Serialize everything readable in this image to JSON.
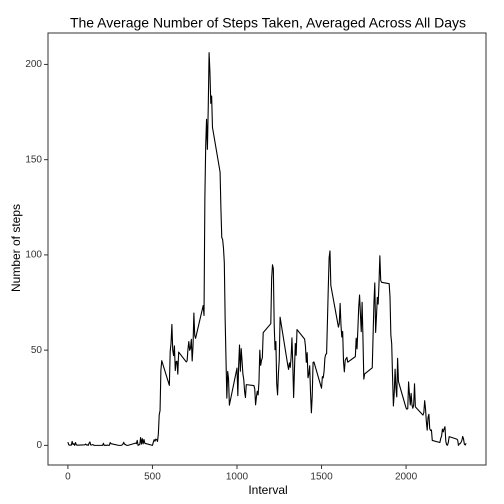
{
  "chart_data": {
    "type": "line",
    "title": "The Average Number of Steps Taken, Averaged Across All Days",
    "x_label": "Interval",
    "y_label": "Number of steps",
    "x": [
      0,
      5,
      10,
      15,
      20,
      25,
      30,
      35,
      40,
      45,
      50,
      55,
      100,
      105,
      110,
      115,
      120,
      125,
      130,
      135,
      140,
      145,
      150,
      155,
      200,
      205,
      210,
      215,
      220,
      225,
      230,
      235,
      240,
      245,
      250,
      255,
      300,
      305,
      310,
      315,
      320,
      325,
      330,
      335,
      340,
      345,
      350,
      355,
      400,
      405,
      410,
      415,
      420,
      425,
      430,
      435,
      440,
      445,
      450,
      455,
      500,
      505,
      510,
      515,
      520,
      525,
      530,
      535,
      540,
      545,
      550,
      555,
      600,
      605,
      610,
      615,
      620,
      625,
      630,
      635,
      640,
      645,
      650,
      655,
      700,
      705,
      710,
      715,
      720,
      725,
      730,
      735,
      740,
      745,
      750,
      755,
      800,
      805,
      810,
      815,
      820,
      825,
      830,
      835,
      840,
      845,
      850,
      855,
      900,
      905,
      910,
      915,
      920,
      925,
      930,
      935,
      940,
      945,
      950,
      955,
      1000,
      1005,
      1010,
      1015,
      1020,
      1025,
      1030,
      1035,
      1040,
      1045,
      1050,
      1055,
      1100,
      1105,
      1110,
      1115,
      1120,
      1125,
      1130,
      1135,
      1140,
      1145,
      1150,
      1155,
      1200,
      1205,
      1210,
      1215,
      1220,
      1225,
      1230,
      1235,
      1240,
      1245,
      1250,
      1255,
      1300,
      1305,
      1310,
      1315,
      1320,
      1325,
      1330,
      1335,
      1340,
      1345,
      1350,
      1355,
      1400,
      1405,
      1410,
      1415,
      1420,
      1425,
      1430,
      1435,
      1440,
      1445,
      1450,
      1455,
      1500,
      1505,
      1510,
      1515,
      1520,
      1525,
      1530,
      1535,
      1540,
      1545,
      1550,
      1555,
      1600,
      1605,
      1610,
      1615,
      1620,
      1625,
      1630,
      1635,
      1640,
      1645,
      1650,
      1655,
      1700,
      1705,
      1710,
      1715,
      1720,
      1725,
      1730,
      1735,
      1740,
      1745,
      1750,
      1755,
      1800,
      1805,
      1810,
      1815,
      1820,
      1825,
      1830,
      1835,
      1840,
      1845,
      1850,
      1855,
      1900,
      1905,
      1910,
      1915,
      1920,
      1925,
      1930,
      1935,
      1940,
      1945,
      1950,
      1955,
      2000,
      2005,
      2010,
      2015,
      2020,
      2025,
      2030,
      2035,
      2040,
      2045,
      2050,
      2055,
      2100,
      2105,
      2110,
      2115,
      2120,
      2125,
      2130,
      2135,
      2140,
      2145,
      2150,
      2155,
      2200,
      2205,
      2210,
      2215,
      2220,
      2225,
      2230,
      2235,
      2240,
      2245,
      2250,
      2255,
      2300,
      2305,
      2310,
      2315,
      2320,
      2325,
      2330,
      2335,
      2340,
      2345,
      2350,
      2355
    ],
    "series": [
      {
        "color": "#000000",
        "values": [
          1.7,
          0.3,
          0.1,
          0.2,
          0.1,
          2.1,
          0.5,
          0.9,
          0,
          1.5,
          0.3,
          0.1,
          0.3,
          0.7,
          0.2,
          0.3,
          0,
          1.1,
          1.8,
          0.2,
          0.2,
          0.4,
          0.3,
          0,
          0,
          0,
          1.1,
          0,
          0,
          0.1,
          0,
          0.2,
          0,
          0,
          1.5,
          0.9,
          0,
          0,
          0,
          0,
          0.2,
          0.6,
          1.6,
          0.6,
          0.5,
          0.1,
          0,
          0,
          1.2,
          0.9,
          2.6,
          0,
          0.3,
          0.4,
          4.1,
          0.7,
          3.5,
          0.8,
          3.1,
          1.1,
          0,
          1.6,
          3,
          2.2,
          3.3,
          3,
          2.1,
          6.1,
          16,
          18.3,
          39.5,
          44.5,
          31.5,
          49.3,
          53.8,
          63.5,
          50,
          47.1,
          52.2,
          39.3,
          44,
          44.2,
          37.4,
          49,
          43.8,
          44.4,
          50.5,
          54.5,
          49.9,
          51,
          55.7,
          44.3,
          52.3,
          69.5,
          57.8,
          56.2,
          73.4,
          68.2,
          129.4,
          157.5,
          171.2,
          155.4,
          177.3,
          206.2,
          195.9,
          179.6,
          183.4,
          167,
          143.5,
          124,
          109.1,
          108.1,
          103.7,
          95.97,
          66.2,
          45.2,
          24.8,
          38.8,
          35,
          21.1,
          40.6,
          26.1,
          42.4,
          52.7,
          38.9,
          50.8,
          44.3,
          37.4,
          34.7,
          28.3,
          25.1,
          31.9,
          31.4,
          29.7,
          21.3,
          25.5,
          28.4,
          26.5,
          33.4,
          50,
          42,
          44.6,
          46,
          59.2,
          63.9,
          87.7,
          94.8,
          92.8,
          63.4,
          50.2,
          54.5,
          32.4,
          26.5,
          37.7,
          45.1,
          67.3,
          42.3,
          39.9,
          43.3,
          40.98,
          46.2,
          56.4,
          42.8,
          25.1,
          39.97,
          53.5,
          47.3,
          60.8,
          55.8,
          51.96,
          43.6,
          48.7,
          35.5,
          37.5,
          41.8,
          27.5,
          17.1,
          26.1,
          43.6,
          43.8,
          30,
          36.1,
          35.5,
          38.8,
          45.96,
          47.8,
          48.1,
          65.3,
          82.9,
          98.7,
          102.1,
          83.96,
          62.1,
          64.1,
          74.5,
          63.2,
          56.9,
          59.8,
          43.9,
          38.6,
          44.7,
          45.5,
          46.2,
          43.7,
          46.6,
          56.3,
          50.7,
          61.2,
          72.7,
          78.9,
          68.9,
          59.7,
          75.1,
          56.5,
          34.8,
          37.5,
          40.7,
          58,
          74.7,
          85.3,
          59.3,
          67.8,
          77.7,
          74.2,
          85.3,
          99.5,
          86.6,
          85.6,
          84.9,
          77.8,
          58,
          53.4,
          36.3,
          20.7,
          27.4,
          40,
          30.2,
          25.5,
          45.7,
          33.5,
          19.6,
          19,
          19.3,
          33.3,
          26.8,
          21.2,
          27.3,
          21.3,
          19.5,
          21.3,
          32.3,
          20.2,
          15.9,
          17.2,
          23.5,
          19.2,
          12.5,
          8,
          14.7,
          16.3,
          8.7,
          7.8,
          8.1,
          2.6,
          1.5,
          3.7,
          4.8,
          8.5,
          7.1,
          8.7,
          9.8,
          2.2,
          0.3,
          0.1,
          1.6,
          4.6,
          3.3,
          2.8,
          0,
          0.8,
          0.96,
          1.6,
          2.6,
          4.7,
          3.3,
          0.6,
          0.2,
          1.1
        ]
      }
    ],
    "xlim": [
      -117.75,
      2472.75
    ],
    "ylim": [
      -10.3,
      216.5
    ],
    "xticks": [
      0,
      500,
      1000,
      1500,
      2000
    ],
    "yticks": [
      0,
      50,
      100,
      150,
      200
    ],
    "grid": false
  }
}
